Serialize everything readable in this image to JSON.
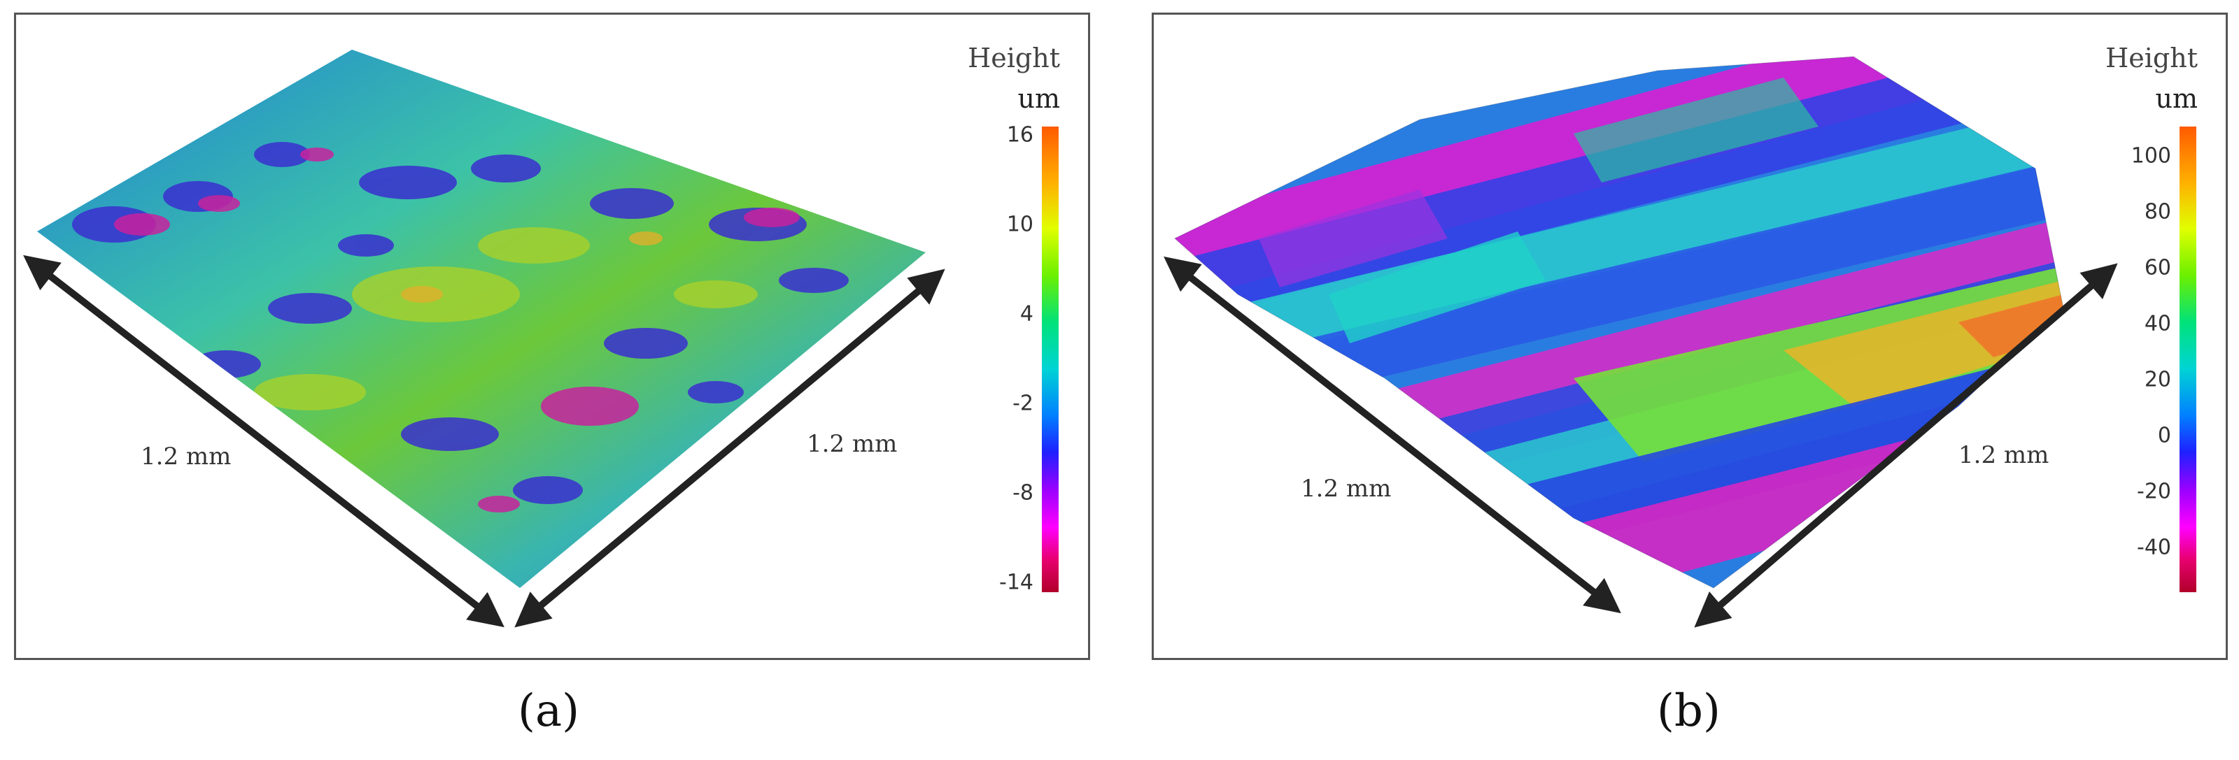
{
  "panels": [
    {
      "id": "a",
      "caption": "(a)",
      "legend": {
        "title": "Height",
        "unit": "um",
        "ticks": [
          "16",
          "10",
          "4",
          "-2",
          "-8",
          "-14"
        ]
      },
      "dimension_labels": [
        "1.2 mm",
        "1.2 mm"
      ]
    },
    {
      "id": "b",
      "caption": "(b)",
      "legend": {
        "title": "Height",
        "unit": "um",
        "ticks": [
          "100",
          "80",
          "60",
          "40",
          "20",
          "0",
          "-20",
          "-40"
        ]
      },
      "dimension_labels": [
        "1.2 mm",
        "1.2 mm"
      ]
    }
  ]
}
